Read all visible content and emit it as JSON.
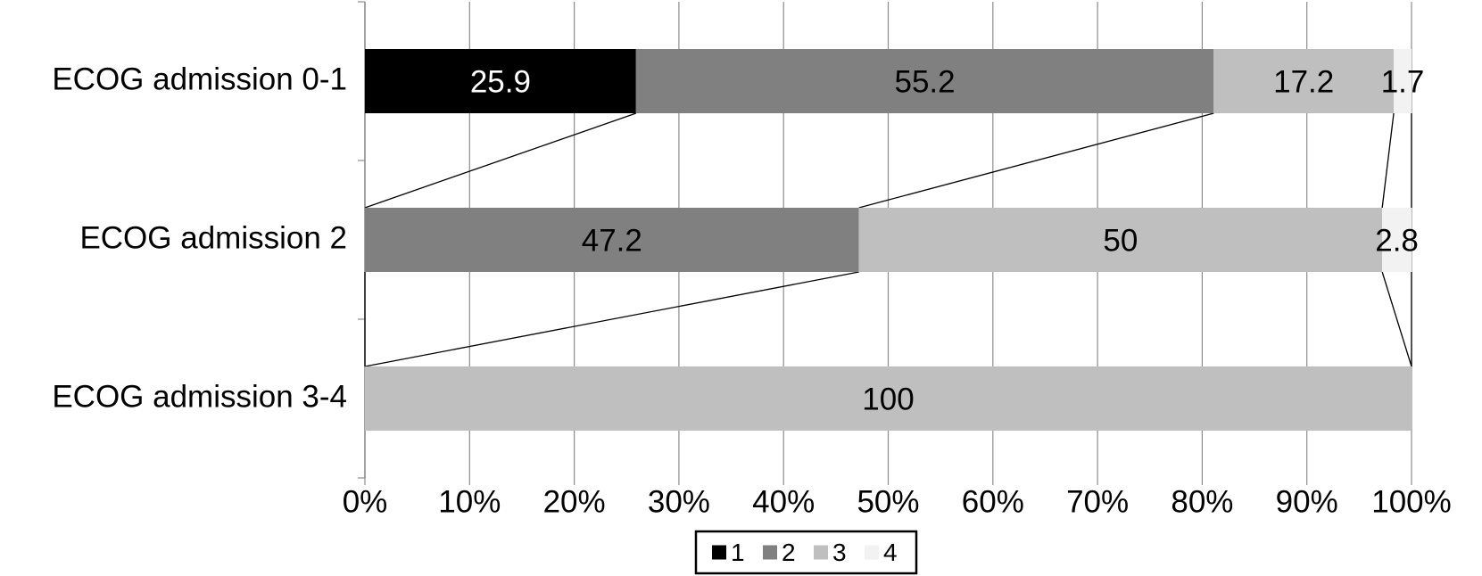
{
  "chart_data": {
    "type": "stacked-bar-horizontal",
    "categories": [
      "ECOG admission 0-1",
      "ECOG admission 2",
      "ECOG admission 3-4"
    ],
    "series": [
      {
        "name": "1",
        "color": "#000000",
        "values": [
          25.9,
          0,
          0
        ]
      },
      {
        "name": "2",
        "color": "#808080",
        "values": [
          55.2,
          47.2,
          0
        ]
      },
      {
        "name": "3",
        "color": "#bfbfbf",
        "values": [
          17.2,
          50,
          100
        ]
      },
      {
        "name": "4",
        "color": "#f2f2f2",
        "values": [
          1.7,
          2.8,
          0
        ]
      }
    ],
    "xlim": [
      0,
      100
    ],
    "xticks": [
      {
        "value": 0,
        "label": "0%"
      },
      {
        "value": 10,
        "label": "10%"
      },
      {
        "value": 20,
        "label": "20%"
      },
      {
        "value": 30,
        "label": "30%"
      },
      {
        "value": 40,
        "label": "40%"
      },
      {
        "value": 50,
        "label": "50%"
      },
      {
        "value": 60,
        "label": "60%"
      },
      {
        "value": 70,
        "label": "70%"
      },
      {
        "value": 80,
        "label": "80%"
      },
      {
        "value": 90,
        "label": "90%"
      },
      {
        "value": 100,
        "label": "100%"
      }
    ],
    "grid": true,
    "legend": "bottom"
  }
}
